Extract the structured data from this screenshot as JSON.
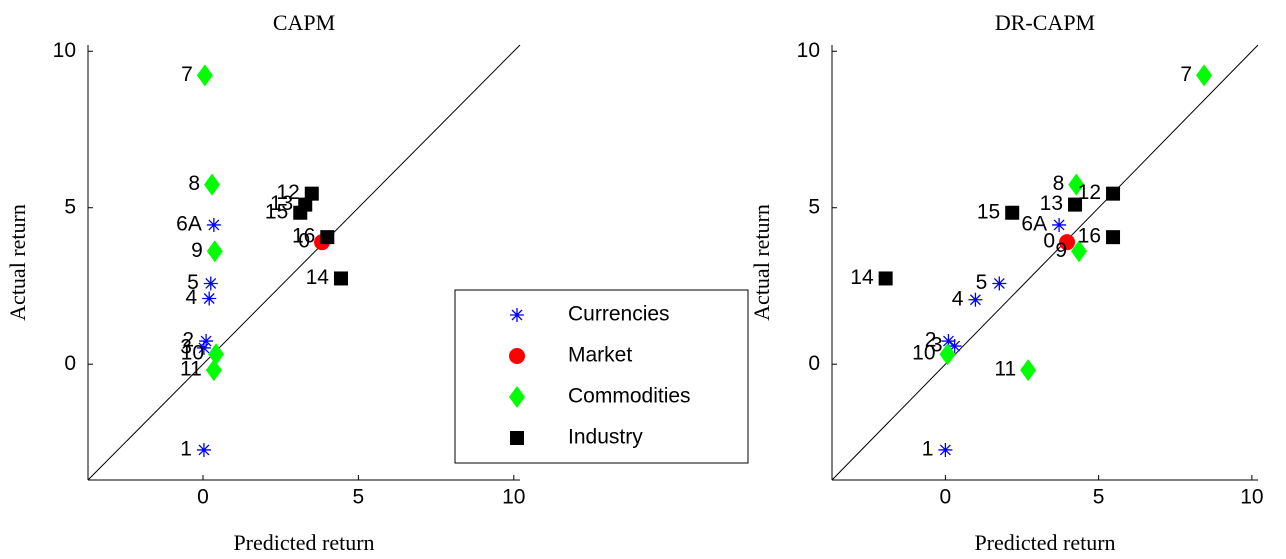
{
  "chart_data": [
    {
      "type": "scatter",
      "title": "CAPM",
      "xlabel": "Predicted return",
      "ylabel": "Actual return",
      "xlim": [
        -3.7,
        10.2
      ],
      "ylim": [
        -3.7,
        10.2
      ],
      "xticks": [
        0,
        5,
        10
      ],
      "yticks": [
        0,
        5,
        10
      ],
      "legend": "lower right",
      "series": [
        {
          "name": "Currencies",
          "color": "#0000ff",
          "marker": "asterisk",
          "labels": [
            "1",
            "2",
            "3",
            "4",
            "5",
            "6A"
          ],
          "x": [
            0.03,
            0.1,
            0.03,
            0.2,
            0.25,
            0.35
          ],
          "values": [
            -2.74,
            0.74,
            0.52,
            2.1,
            2.58,
            4.45
          ]
        },
        {
          "name": "Market",
          "color": "#ff0000",
          "marker": "circle",
          "labels": [
            "0"
          ],
          "x": [
            3.83
          ],
          "values": [
            3.9
          ]
        },
        {
          "name": "Commodities",
          "color": "#00ff00",
          "marker": "diamond",
          "labels": [
            "7",
            "8",
            "9",
            "10",
            "11"
          ],
          "x": [
            0.06,
            0.29,
            0.38,
            0.42,
            0.35
          ],
          "values": [
            9.23,
            5.74,
            3.61,
            0.32,
            -0.19
          ]
        },
        {
          "name": "Industry",
          "color": "#000000",
          "marker": "square",
          "labels": [
            "12",
            "13",
            "14",
            "15",
            "16"
          ],
          "x": [
            3.5,
            3.29,
            4.44,
            3.13,
            4.0
          ],
          "values": [
            5.45,
            5.1,
            2.74,
            4.84,
            4.06
          ]
        }
      ]
    },
    {
      "type": "scatter",
      "title": "DR-CAPM",
      "xlabel": "Predicted return",
      "ylabel": "Actual return",
      "xlim": [
        -3.7,
        10.2
      ],
      "ylim": [
        -3.7,
        10.2
      ],
      "xticks": [
        0,
        5,
        10
      ],
      "yticks": [
        0,
        5,
        10
      ],
      "series": [
        {
          "color": "#0000ff",
          "marker": "asterisk",
          "labels": [
            "1",
            "2",
            "3",
            "4",
            "5",
            "6A"
          ],
          "x": [
            0,
            0.1,
            0.3,
            0.98,
            1.76,
            3.71
          ],
          "values": [
            -2.74,
            0.74,
            0.58,
            2.06,
            2.58,
            4.45
          ]
        },
        {
          "color": "#ff0000",
          "marker": "circle",
          "labels": [
            "0"
          ],
          "x": [
            3.97
          ],
          "values": [
            3.9
          ]
        },
        {
          "color": "#00ff00",
          "marker": "diamond",
          "labels": [
            "7",
            "8",
            "9",
            "10",
            "11"
          ],
          "x": [
            8.44,
            4.27,
            4.36,
            0.07,
            2.7
          ],
          "values": [
            9.23,
            5.74,
            3.61,
            0.32,
            -0.19
          ]
        },
        {
          "color": "#000000",
          "marker": "square",
          "labels": [
            "12",
            "13",
            "14",
            "15",
            "16"
          ],
          "x": [
            5.47,
            4.23,
            -1.95,
            2.18,
            5.47
          ],
          "values": [
            5.45,
            5.1,
            2.74,
            4.84,
            4.06
          ]
        }
      ]
    }
  ]
}
